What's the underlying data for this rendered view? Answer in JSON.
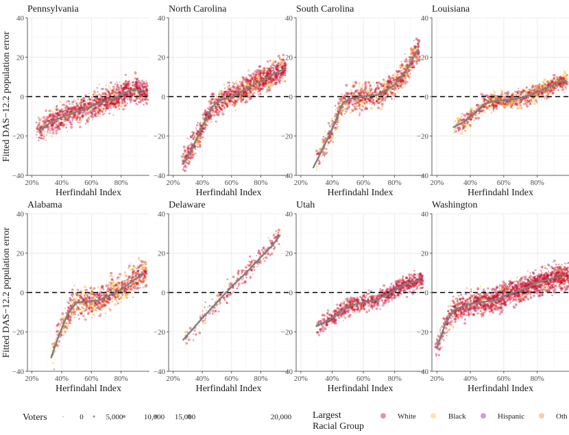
{
  "colors": {
    "White": "#c8102e",
    "Black": "#f4c842",
    "Hispanic": "#8e2c9e",
    "Other": "#e8962e",
    "trend": "#7f7f7f",
    "grid": "#ebebeb",
    "zero_line": "#000000"
  },
  "chart_data": {
    "type": "scatter",
    "title": "",
    "xlabel": "Herfindahl Index",
    "ylabel": "Fitted DAS−12.2 population error",
    "xlim": [
      0.17,
      0.99
    ],
    "ylim": [
      -40,
      40
    ],
    "x_ticks": [
      0.2,
      0.4,
      0.6,
      0.8
    ],
    "x_tick_labels": [
      "20%",
      "40%",
      "60%",
      "80%"
    ],
    "y_ticks": [
      -40,
      -20,
      0,
      20,
      40
    ],
    "y_tick_labels": [
      "−40",
      "−20",
      "0",
      "20",
      "40"
    ],
    "reference_line": {
      "y": 0,
      "style": "dashed"
    },
    "panels": [
      {
        "state": "Pennsylvania",
        "trend": [
          [
            0.25,
            -17
          ],
          [
            0.35,
            -12
          ],
          [
            0.45,
            -9
          ],
          [
            0.55,
            -6.5
          ],
          [
            0.65,
            -3.5
          ],
          [
            0.75,
            -1
          ],
          [
            0.85,
            3
          ],
          [
            0.9,
            3.5
          ],
          [
            0.96,
            3
          ]
        ],
        "cloud": {
          "x_range": [
            0.23,
            0.98
          ],
          "spread": 4.5,
          "n": 1300,
          "mix": {
            "White": 0.84,
            "Black": 0.1,
            "Hispanic": 0.04,
            "Other": 0.02
          }
        }
      },
      {
        "state": "North Carolina",
        "trend": [
          [
            0.27,
            -34
          ],
          [
            0.32,
            -28
          ],
          [
            0.37,
            -20
          ],
          [
            0.42,
            -12
          ],
          [
            0.47,
            -5
          ],
          [
            0.52,
            -2
          ],
          [
            0.6,
            0
          ],
          [
            0.7,
            4
          ],
          [
            0.8,
            8
          ],
          [
            0.9,
            12
          ],
          [
            0.96,
            14
          ]
        ],
        "cloud": {
          "x_range": [
            0.26,
            0.97
          ],
          "spread": 4.5,
          "n": 1300,
          "mix": {
            "White": 0.82,
            "Black": 0.16,
            "Hispanic": 0.01,
            "Other": 0.01
          }
        }
      },
      {
        "state": "South Carolina",
        "trend": [
          [
            0.28,
            -36
          ],
          [
            0.35,
            -25
          ],
          [
            0.42,
            -13
          ],
          [
            0.47,
            -3
          ],
          [
            0.52,
            -1
          ],
          [
            0.6,
            0
          ],
          [
            0.7,
            1
          ],
          [
            0.8,
            6
          ],
          [
            0.88,
            14
          ],
          [
            0.95,
            24
          ]
        ],
        "cloud": {
          "x_range": [
            0.3,
            0.96
          ],
          "spread": 4.5,
          "n": 1000,
          "mix": {
            "White": 0.72,
            "Black": 0.26,
            "Hispanic": 0.01,
            "Other": 0.01
          }
        }
      },
      {
        "state": "Louisiana",
        "trend": [
          [
            0.3,
            -15.5
          ],
          [
            0.36,
            -13
          ],
          [
            0.42,
            -9
          ],
          [
            0.48,
            -4
          ],
          [
            0.55,
            -2
          ],
          [
            0.65,
            -1.5
          ],
          [
            0.75,
            0.5
          ],
          [
            0.85,
            4
          ],
          [
            0.93,
            7.5
          ],
          [
            0.97,
            8
          ]
        ],
        "cloud": {
          "x_range": [
            0.3,
            0.98
          ],
          "spread": 3,
          "n": 1000,
          "mix": {
            "White": 0.7,
            "Black": 0.28,
            "Hispanic": 0.01,
            "Other": 0.01
          }
        }
      },
      {
        "state": "Alabama",
        "trend": [
          [
            0.33,
            -33
          ],
          [
            0.38,
            -22
          ],
          [
            0.44,
            -11
          ],
          [
            0.5,
            -5
          ],
          [
            0.57,
            -4.5
          ],
          [
            0.65,
            -4
          ],
          [
            0.72,
            -1.5
          ],
          [
            0.8,
            1.5
          ],
          [
            0.88,
            6
          ],
          [
            0.95,
            9.5
          ]
        ],
        "cloud": {
          "x_range": [
            0.33,
            0.97
          ],
          "spread": 5,
          "n": 900,
          "mix": {
            "White": 0.68,
            "Black": 0.3,
            "Hispanic": 0.01,
            "Other": 0.01
          }
        }
      },
      {
        "state": "Delaware",
        "trend": [
          [
            0.27,
            -24
          ],
          [
            0.4,
            -13
          ],
          [
            0.5,
            -5
          ],
          [
            0.6,
            3
          ],
          [
            0.7,
            10
          ],
          [
            0.8,
            18
          ],
          [
            0.88,
            24
          ],
          [
            0.93,
            29
          ]
        ],
        "cloud": {
          "x_range": [
            0.27,
            0.93
          ],
          "spread": 3.5,
          "n": 260,
          "mix": {
            "White": 0.9,
            "Black": 0.08,
            "Hispanic": 0.01,
            "Other": 0.01
          }
        }
      },
      {
        "state": "Utah",
        "trend": [
          [
            0.3,
            -17
          ],
          [
            0.4,
            -13
          ],
          [
            0.5,
            -7
          ],
          [
            0.6,
            -5
          ],
          [
            0.68,
            -4
          ],
          [
            0.75,
            -1
          ],
          [
            0.82,
            2
          ],
          [
            0.9,
            5
          ],
          [
            0.96,
            6
          ]
        ],
        "cloud": {
          "x_range": [
            0.3,
            0.98
          ],
          "spread": 3,
          "n": 900,
          "mix": {
            "White": 0.94,
            "Black": 0.02,
            "Hispanic": 0.04,
            "Other": 0.0
          }
        }
      },
      {
        "state": "Washington",
        "trend": [
          [
            0.2,
            -28
          ],
          [
            0.25,
            -16
          ],
          [
            0.3,
            -9
          ],
          [
            0.38,
            -6
          ],
          [
            0.45,
            -5
          ],
          [
            0.55,
            -4
          ],
          [
            0.62,
            -1
          ],
          [
            0.7,
            1
          ],
          [
            0.8,
            5
          ],
          [
            0.88,
            7
          ],
          [
            0.94,
            8
          ]
        ],
        "cloud": {
          "x_range": [
            0.19,
            0.99
          ],
          "spread": 4.5,
          "n": 1800,
          "mix": {
            "White": 0.9,
            "Black": 0.05,
            "Hispanic": 0.04,
            "Other": 0.01
          }
        }
      }
    ],
    "legend": {
      "size_title": "Voters",
      "size_entries": [
        "0",
        "5,000",
        "10,000",
        "15,000",
        "20,000"
      ],
      "color_title_line1": "Largest",
      "color_title_line2": "Racial Group",
      "color_entries": [
        "White",
        "Black",
        "Hispanic",
        "Other"
      ],
      "color_entries_shown": [
        "White",
        "Black",
        "Hispanic",
        "Oth"
      ]
    }
  }
}
